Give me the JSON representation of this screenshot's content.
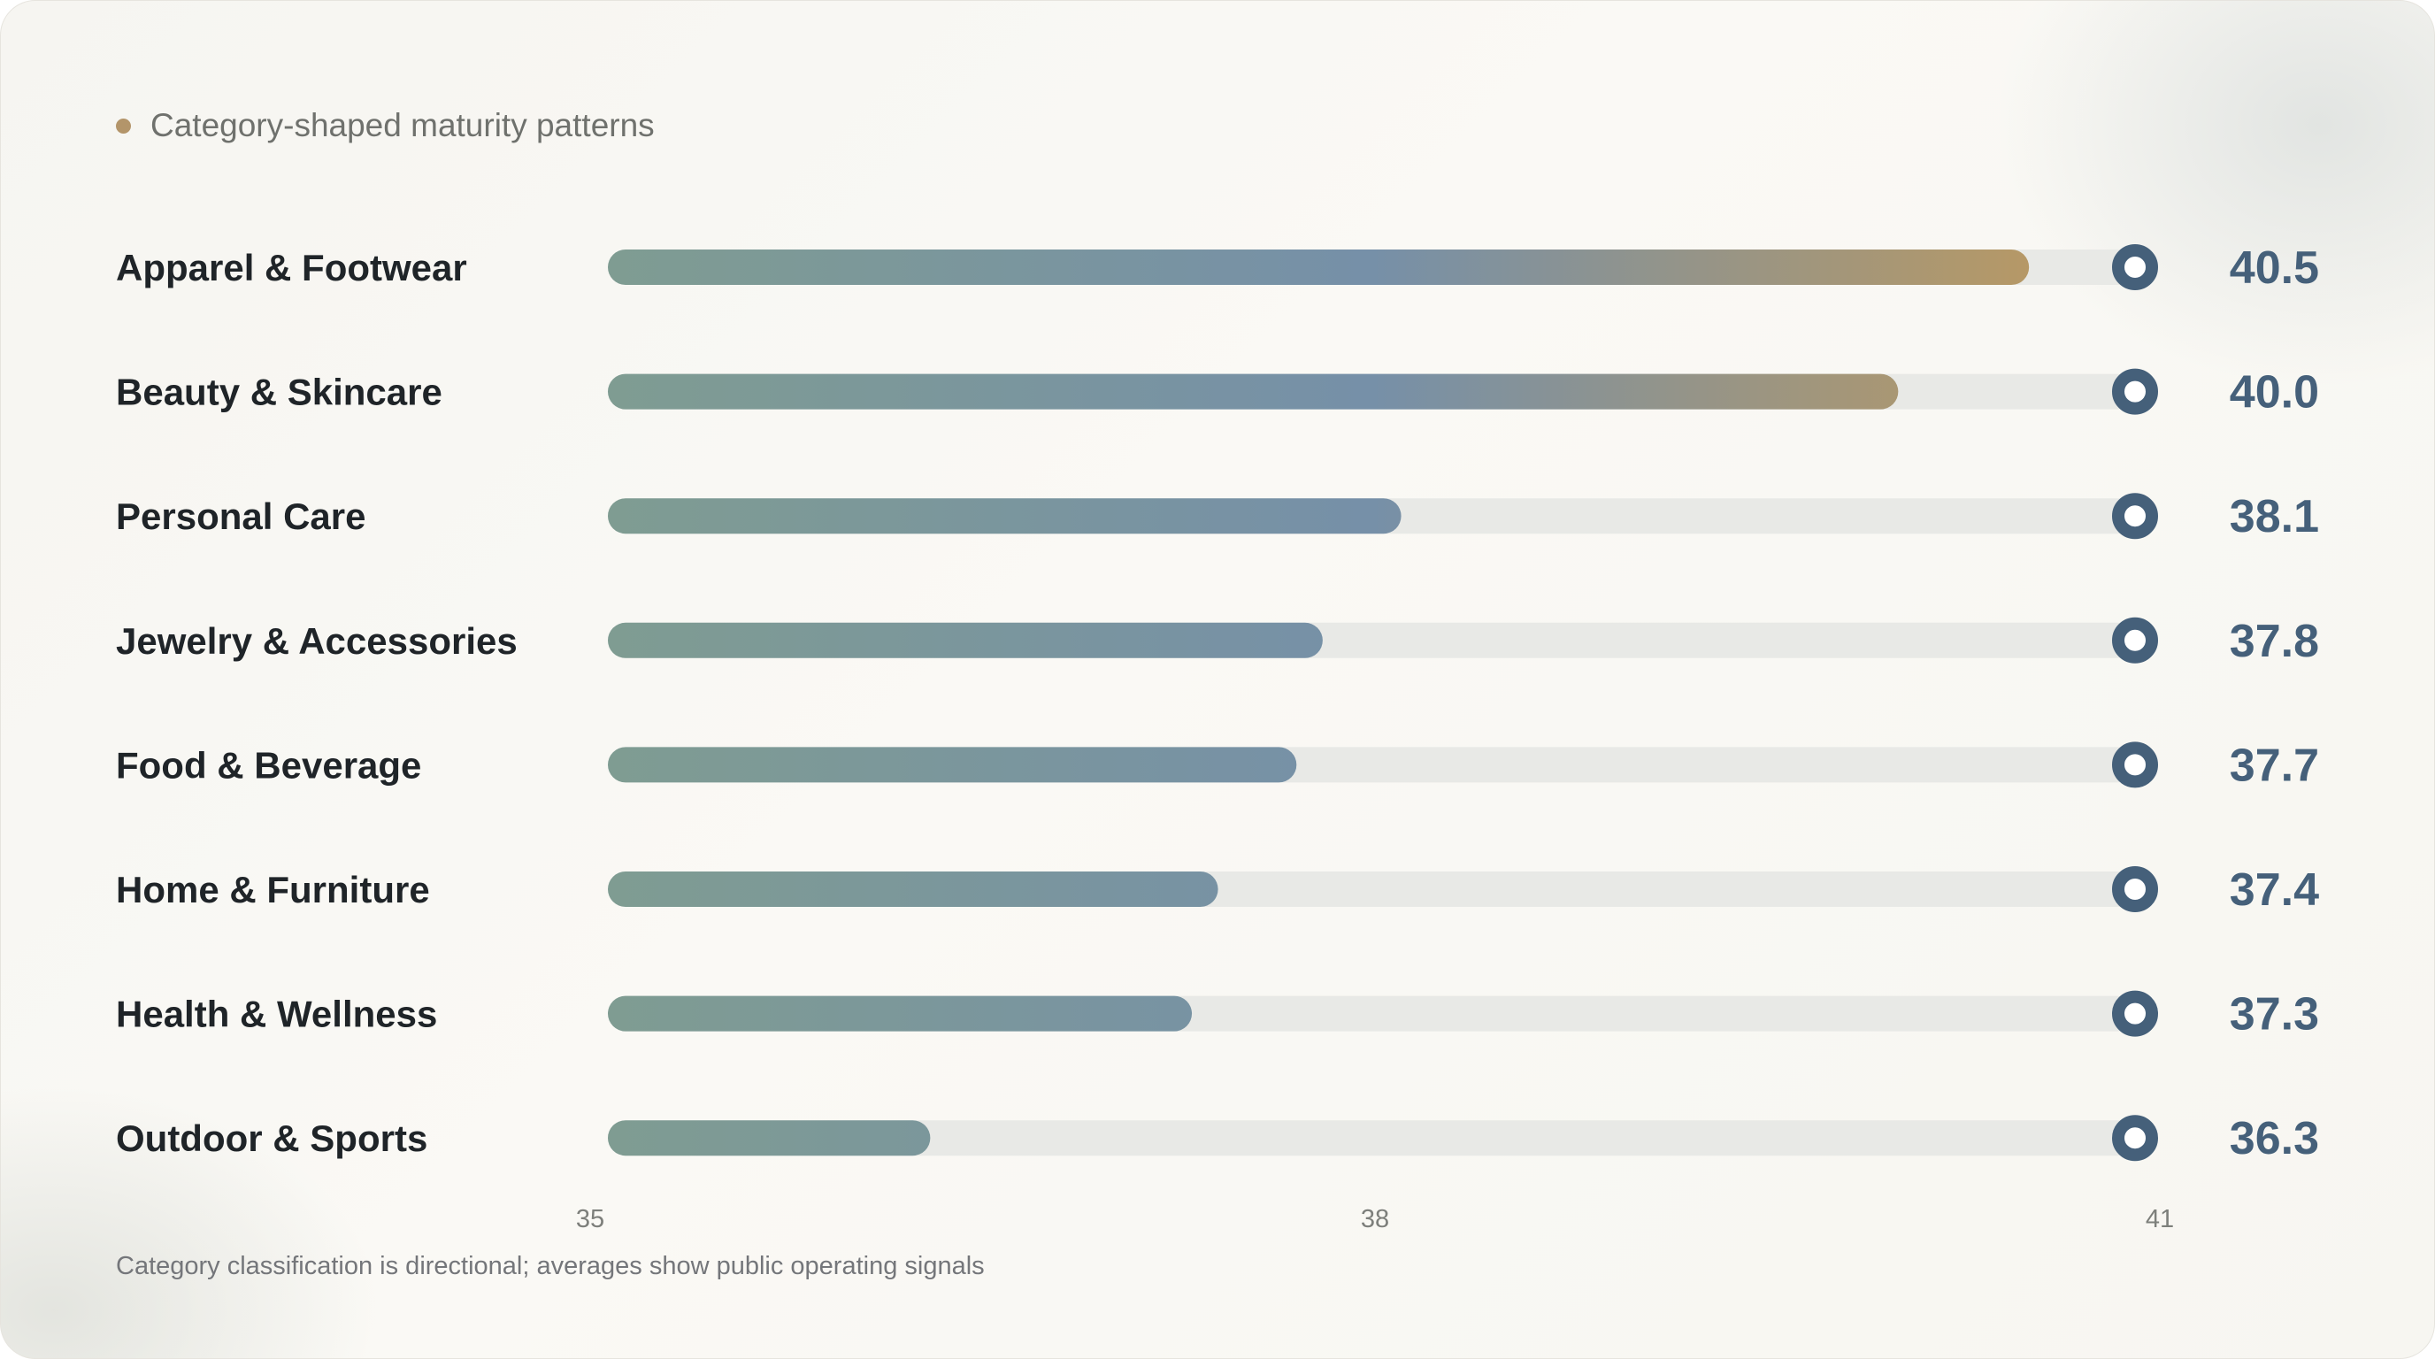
{
  "header": {
    "subtitle": "Category-shaped maturity patterns",
    "dot_color": "#b3956a"
  },
  "footnote": "Category classification is directional; averages show public operating signals",
  "colors": {
    "track": "#e8e9e6",
    "gradient": [
      "#7f9c92",
      "#7690a8",
      "#c09a5c"
    ],
    "marker": "#45607a",
    "label": "#1f2428",
    "value": "#45607a"
  },
  "chart_data": {
    "type": "bar",
    "orientation": "horizontal",
    "title": "Category-shaped maturity patterns",
    "categories": [
      "Apparel & Footwear",
      "Beauty & Skincare",
      "Personal Care",
      "Jewelry & Accessories",
      "Food & Beverage",
      "Home & Furniture",
      "Health & Wellness",
      "Outdoor & Sports"
    ],
    "values": [
      40.5,
      40.0,
      38.1,
      37.8,
      37.7,
      37.4,
      37.3,
      36.3
    ],
    "value_labels": [
      "40.5",
      "40.0",
      "38.1",
      "37.8",
      "37.7",
      "37.4",
      "37.3",
      "36.3"
    ],
    "xlim": [
      35,
      41
    ],
    "xticks": [
      35,
      38,
      41
    ],
    "xtick_labels": [
      "35",
      "38",
      "41"
    ],
    "grid": false,
    "legend": "none"
  }
}
